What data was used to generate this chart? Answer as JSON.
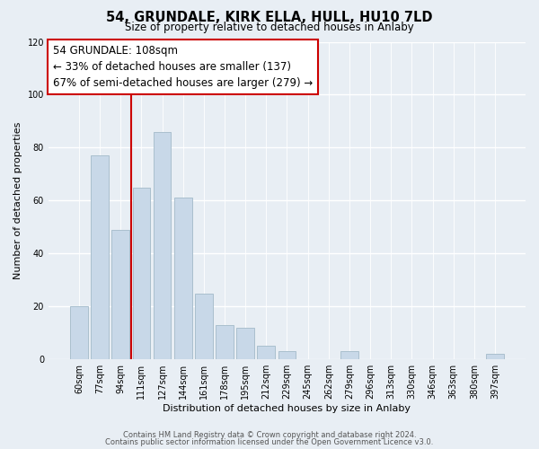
{
  "title": "54, GRUNDALE, KIRK ELLA, HULL, HU10 7LD",
  "subtitle": "Size of property relative to detached houses in Anlaby",
  "xlabel": "Distribution of detached houses by size in Anlaby",
  "ylabel": "Number of detached properties",
  "footnote1": "Contains HM Land Registry data © Crown copyright and database right 2024.",
  "footnote2": "Contains public sector information licensed under the Open Government Licence v3.0.",
  "bar_labels": [
    "60sqm",
    "77sqm",
    "94sqm",
    "111sqm",
    "127sqm",
    "144sqm",
    "161sqm",
    "178sqm",
    "195sqm",
    "212sqm",
    "229sqm",
    "245sqm",
    "262sqm",
    "279sqm",
    "296sqm",
    "313sqm",
    "330sqm",
    "346sqm",
    "363sqm",
    "380sqm",
    "397sqm"
  ],
  "bar_heights": [
    20,
    77,
    49,
    65,
    86,
    61,
    25,
    13,
    12,
    5,
    3,
    0,
    0,
    3,
    0,
    0,
    0,
    0,
    0,
    0,
    2
  ],
  "bar_color": "#c8d8e8",
  "bar_edge_color": "#aabfce",
  "vline_color": "#cc0000",
  "vline_index": 3,
  "ylim": [
    0,
    120
  ],
  "yticks": [
    0,
    20,
    40,
    60,
    80,
    100,
    120
  ],
  "annotation_line1": "54 GRUNDALE: 108sqm",
  "annotation_line2": "← 33% of detached houses are smaller (137)",
  "annotation_line3": "67% of semi-detached houses are larger (279) →",
  "annotation_box_color": "#ffffff",
  "annotation_box_edge": "#cc0000",
  "bg_color": "#e8eef4",
  "plot_bg_color": "#e8eef4",
  "grid_color": "#ffffff"
}
